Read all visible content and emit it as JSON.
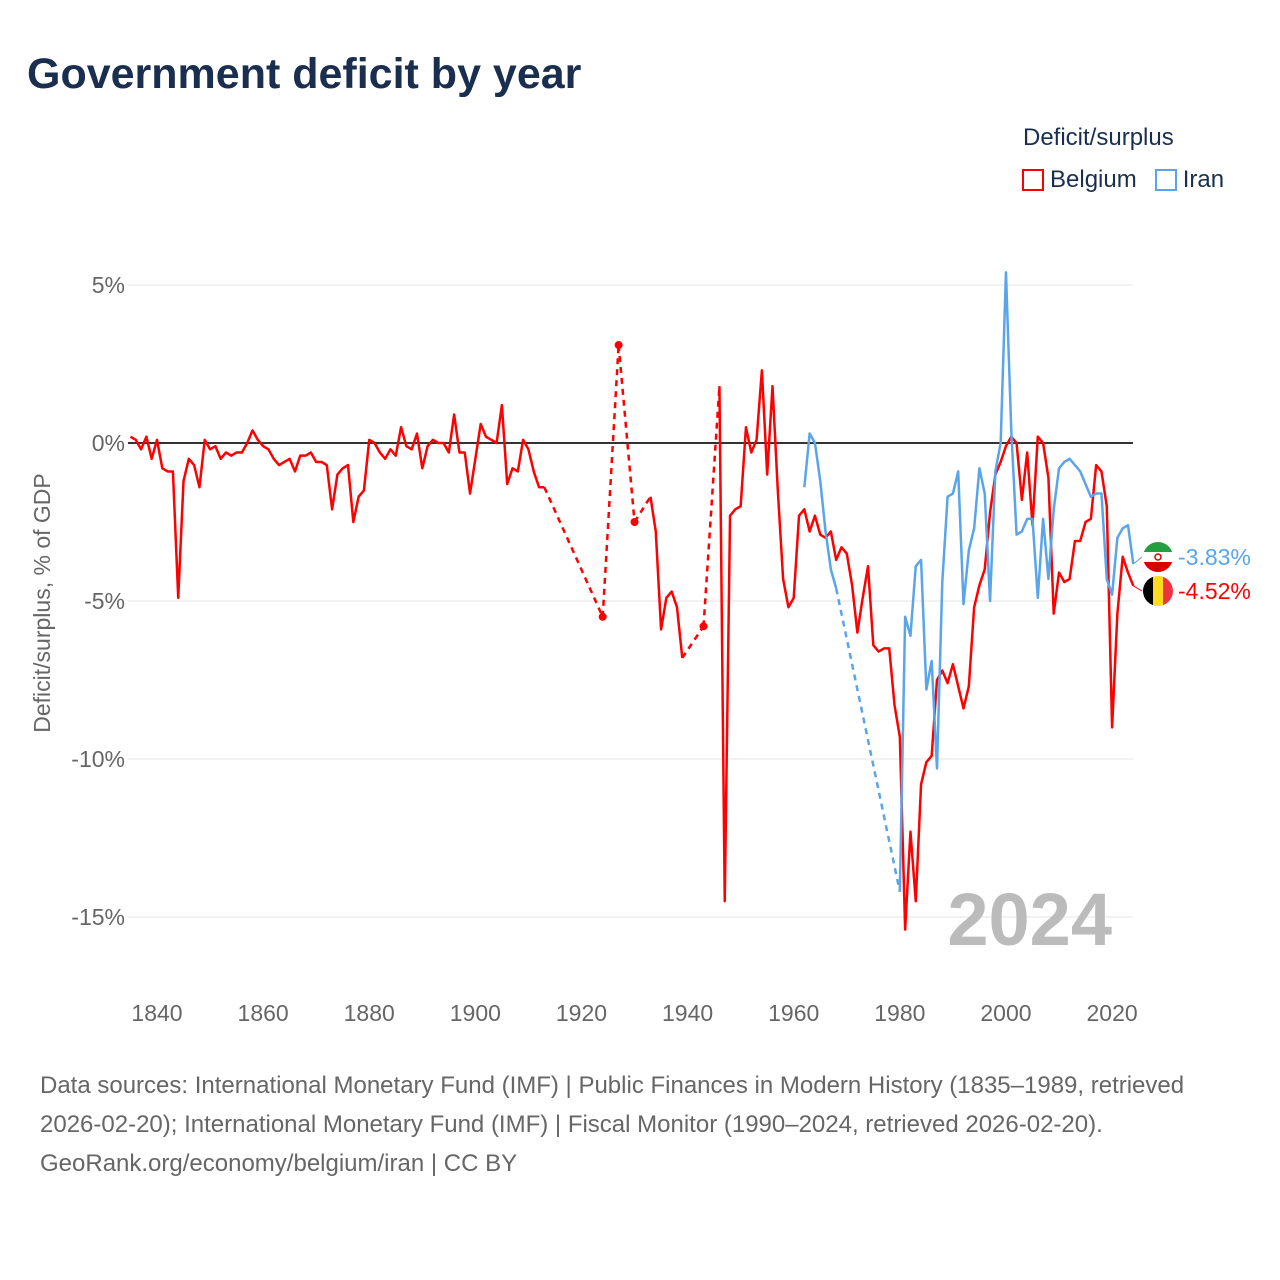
{
  "title": "Government deficit by year",
  "chart_data": {
    "type": "line",
    "title": "Government deficit by year",
    "xlabel": "",
    "ylabel": "Deficit/surplus, % of GDP",
    "legend_title": "Deficit/surplus",
    "legend_position": "top-right",
    "xlim": [
      1835,
      2024
    ],
    "ylim": [
      -17,
      6.5
    ],
    "x_ticks": [
      1840,
      1860,
      1880,
      1900,
      1920,
      1940,
      1960,
      1980,
      2000,
      2020
    ],
    "y_ticks": [
      5,
      0,
      -5,
      -10,
      -15
    ],
    "y_tick_labels": [
      "5%",
      "0%",
      "-5%",
      "-10%",
      "-15%"
    ],
    "x_tick_labels": [
      "1840",
      "1860",
      "1880",
      "1900",
      "1920",
      "1940",
      "1960",
      "1980",
      "2000",
      "2020"
    ],
    "watermark_year": "2024",
    "series": [
      {
        "name": "Belgium",
        "color": "#ff0000",
        "end_label": "-4.52%",
        "points": [
          [
            1835,
            0.2
          ],
          [
            1836,
            0.1
          ],
          [
            1837,
            -0.2
          ],
          [
            1838,
            0.2
          ],
          [
            1839,
            -0.5
          ],
          [
            1840,
            0.1
          ],
          [
            1841,
            -0.8
          ],
          [
            1842,
            -0.9
          ],
          [
            1843,
            -0.9
          ],
          [
            1844,
            -4.9
          ],
          [
            1845,
            -1.2
          ],
          [
            1846,
            -0.5
          ],
          [
            1847,
            -0.7
          ],
          [
            1848,
            -1.4
          ],
          [
            1849,
            0.1
          ],
          [
            1850,
            -0.2
          ],
          [
            1851,
            -0.1
          ],
          [
            1852,
            -0.5
          ],
          [
            1853,
            -0.3
          ],
          [
            1854,
            -0.4
          ],
          [
            1855,
            -0.3
          ],
          [
            1856,
            -0.3
          ],
          [
            1857,
            0.0
          ],
          [
            1858,
            0.4
          ],
          [
            1859,
            0.1
          ],
          [
            1860,
            -0.1
          ],
          [
            1861,
            -0.2
          ],
          [
            1862,
            -0.5
          ],
          [
            1863,
            -0.7
          ],
          [
            1864,
            -0.6
          ],
          [
            1865,
            -0.5
          ],
          [
            1866,
            -0.9
          ],
          [
            1867,
            -0.4
          ],
          [
            1868,
            -0.4
          ],
          [
            1869,
            -0.3
          ],
          [
            1870,
            -0.6
          ],
          [
            1871,
            -0.6
          ],
          [
            1872,
            -0.7
          ],
          [
            1873,
            -2.1
          ],
          [
            1874,
            -1.0
          ],
          [
            1875,
            -0.8
          ],
          [
            1876,
            -0.7
          ],
          [
            1877,
            -2.5
          ],
          [
            1878,
            -1.7
          ],
          [
            1879,
            -1.5
          ],
          [
            1880,
            0.1
          ],
          [
            1881,
            0.0
          ],
          [
            1882,
            -0.3
          ],
          [
            1883,
            -0.5
          ],
          [
            1884,
            -0.2
          ],
          [
            1885,
            -0.4
          ],
          [
            1886,
            0.5
          ],
          [
            1887,
            -0.1
          ],
          [
            1888,
            -0.2
          ],
          [
            1889,
            0.3
          ],
          [
            1890,
            -0.8
          ],
          [
            1891,
            -0.1
          ],
          [
            1892,
            0.1
          ],
          [
            1893,
            0.0
          ],
          [
            1894,
            0.0
          ],
          [
            1895,
            -0.3
          ],
          [
            1896,
            0.9
          ],
          [
            1897,
            -0.3
          ],
          [
            1898,
            -0.3
          ],
          [
            1899,
            -1.6
          ],
          [
            1900,
            -0.5
          ],
          [
            1901,
            0.6
          ],
          [
            1902,
            0.2
          ],
          [
            1903,
            0.1
          ],
          [
            1904,
            0.0
          ],
          [
            1905,
            1.2
          ],
          [
            1906,
            -1.3
          ],
          [
            1907,
            -0.8
          ],
          [
            1908,
            -0.9
          ],
          [
            1909,
            0.1
          ],
          [
            1910,
            -0.2
          ],
          [
            1911,
            -0.9
          ],
          [
            1912,
            -1.4
          ],
          [
            1913,
            -1.4
          ],
          [
            1924,
            -5.5
          ],
          [
            1927,
            3.1
          ],
          [
            1930,
            -2.5
          ],
          [
            1933,
            -1.7
          ],
          [
            1934,
            -2.8
          ],
          [
            1935,
            -5.9
          ],
          [
            1936,
            -4.9
          ],
          [
            1937,
            -4.7
          ],
          [
            1938,
            -5.2
          ],
          [
            1939,
            -6.8
          ],
          [
            1943,
            -5.8
          ],
          [
            1946,
            1.8
          ],
          [
            1947,
            -14.5
          ],
          [
            1948,
            -2.3
          ],
          [
            1949,
            -2.1
          ],
          [
            1950,
            -2.0
          ],
          [
            1951,
            0.5
          ],
          [
            1952,
            -0.3
          ],
          [
            1953,
            0.1
          ],
          [
            1954,
            2.3
          ],
          [
            1955,
            -1.0
          ],
          [
            1956,
            1.8
          ],
          [
            1957,
            -1.5
          ],
          [
            1958,
            -4.3
          ],
          [
            1959,
            -5.2
          ],
          [
            1960,
            -4.9
          ],
          [
            1961,
            -2.3
          ],
          [
            1962,
            -2.1
          ],
          [
            1963,
            -2.8
          ],
          [
            1964,
            -2.3
          ],
          [
            1965,
            -2.9
          ],
          [
            1966,
            -3.0
          ],
          [
            1967,
            -2.8
          ],
          [
            1968,
            -3.7
          ],
          [
            1969,
            -3.3
          ],
          [
            1970,
            -3.5
          ],
          [
            1971,
            -4.5
          ],
          [
            1972,
            -6.0
          ],
          [
            1973,
            -4.9
          ],
          [
            1974,
            -3.9
          ],
          [
            1975,
            -6.4
          ],
          [
            1976,
            -6.6
          ],
          [
            1977,
            -6.5
          ],
          [
            1978,
            -6.5
          ],
          [
            1979,
            -8.3
          ],
          [
            1980,
            -9.3
          ],
          [
            1981,
            -15.4
          ],
          [
            1982,
            -12.3
          ],
          [
            1983,
            -14.5
          ],
          [
            1984,
            -10.8
          ],
          [
            1985,
            -10.1
          ],
          [
            1986,
            -9.9
          ],
          [
            1987,
            -7.5
          ],
          [
            1988,
            -7.2
          ],
          [
            1989,
            -7.6
          ],
          [
            1990,
            -7.0
          ],
          [
            1991,
            -7.7
          ],
          [
            1992,
            -8.4
          ],
          [
            1993,
            -7.7
          ],
          [
            1994,
            -5.2
          ],
          [
            1995,
            -4.5
          ],
          [
            1996,
            -4.0
          ],
          [
            1997,
            -2.2
          ],
          [
            1998,
            -1.0
          ],
          [
            1999,
            -0.6
          ],
          [
            2000,
            -0.1
          ],
          [
            2001,
            0.2
          ],
          [
            2002,
            0.0
          ],
          [
            2003,
            -1.8
          ],
          [
            2004,
            -0.3
          ],
          [
            2005,
            -2.6
          ],
          [
            2006,
            0.2
          ],
          [
            2007,
            0.0
          ],
          [
            2008,
            -1.1
          ],
          [
            2009,
            -5.4
          ],
          [
            2010,
            -4.1
          ],
          [
            2011,
            -4.4
          ],
          [
            2012,
            -4.3
          ],
          [
            2013,
            -3.1
          ],
          [
            2014,
            -3.1
          ],
          [
            2015,
            -2.5
          ],
          [
            2016,
            -2.4
          ],
          [
            2017,
            -0.7
          ],
          [
            2018,
            -0.9
          ],
          [
            2019,
            -2.0
          ],
          [
            2020,
            -9.0
          ],
          [
            2021,
            -5.4
          ],
          [
            2022,
            -3.6
          ],
          [
            2023,
            -4.1
          ],
          [
            2024,
            -4.52
          ]
        ]
      },
      {
        "name": "Iran",
        "color": "#5aa5ea",
        "end_label": "-3.83%",
        "points": [
          [
            1962,
            -1.4
          ],
          [
            1963,
            0.3
          ],
          [
            1964,
            0.0
          ],
          [
            1965,
            -1.2
          ],
          [
            1966,
            -2.8
          ],
          [
            1967,
            -4.0
          ],
          [
            1968,
            -4.6
          ],
          [
            1980,
            -14.2
          ],
          [
            1981,
            -5.5
          ],
          [
            1982,
            -6.1
          ],
          [
            1983,
            -3.9
          ],
          [
            1984,
            -3.7
          ],
          [
            1985,
            -7.8
          ],
          [
            1986,
            -6.9
          ],
          [
            1987,
            -10.3
          ],
          [
            1988,
            -4.4
          ],
          [
            1989,
            -1.7
          ],
          [
            1990,
            -1.6
          ],
          [
            1991,
            -0.9
          ],
          [
            1992,
            -5.1
          ],
          [
            1993,
            -3.4
          ],
          [
            1994,
            -2.7
          ],
          [
            1995,
            -0.8
          ],
          [
            1996,
            -1.6
          ],
          [
            1997,
            -5.0
          ],
          [
            1998,
            -0.9
          ],
          [
            1999,
            0.0
          ],
          [
            2000,
            5.4
          ],
          [
            2001,
            0.4
          ],
          [
            2002,
            -2.9
          ],
          [
            2003,
            -2.8
          ],
          [
            2004,
            -2.4
          ],
          [
            2005,
            -2.4
          ],
          [
            2006,
            -4.9
          ],
          [
            2007,
            -2.4
          ],
          [
            2008,
            -4.3
          ],
          [
            2009,
            -2.1
          ],
          [
            2010,
            -0.8
          ],
          [
            2011,
            -0.6
          ],
          [
            2012,
            -0.5
          ],
          [
            2013,
            -0.7
          ],
          [
            2014,
            -0.9
          ],
          [
            2015,
            -1.3
          ],
          [
            2016,
            -1.7
          ],
          [
            2017,
            -1.6
          ],
          [
            2018,
            -1.6
          ],
          [
            2019,
            -4.3
          ],
          [
            2020,
            -4.8
          ],
          [
            2021,
            -3.0
          ],
          [
            2022,
            -2.7
          ],
          [
            2023,
            -2.6
          ],
          [
            2024,
            -3.83
          ]
        ]
      }
    ]
  },
  "footer": {
    "sources": "Data sources: International Monetary Fund (IMF) | Public Finances in Modern History (1835–1989, retrieved 2026-02-20); International Monetary Fund (IMF) | Fiscal Monitor (1990–2024, retrieved 2026-02-20).",
    "credit": "GeoRank.org/economy/belgium/iran | CC BY"
  }
}
